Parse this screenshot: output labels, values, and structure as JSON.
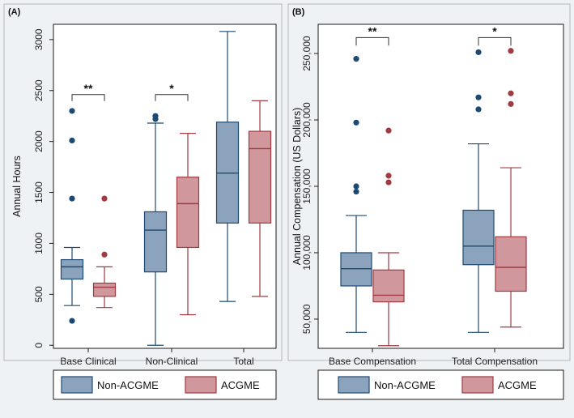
{
  "colors": {
    "background": "#eef2f5",
    "plot_bg": "#ffffff",
    "non_acgme_fill": "#8ba3bd",
    "non_acgme_line": "#1d4a72",
    "acgme_fill": "#d0979c",
    "acgme_line": "#a13a42"
  },
  "chart_data": [
    {
      "type": "boxplot",
      "panel_label": "(A)",
      "ylabel": "Annual Hours",
      "ylim": [
        -30,
        3150
      ],
      "yticks": [
        0,
        500,
        1000,
        1500,
        2000,
        2500,
        3000
      ],
      "ytick_labels": [
        "0",
        "500",
        "1000",
        "1500",
        "2000",
        "2500",
        "3000"
      ],
      "categories": [
        "Base Clinical",
        "Non-Clinical",
        "Total"
      ],
      "legend": [
        "Non-ACGME",
        "ACGME"
      ],
      "series": [
        {
          "name": "Non-ACGME",
          "boxes": [
            {
              "whisker_low": 390,
              "q1": 650,
              "median": 770,
              "q3": 840,
              "whisker_high": 960,
              "outliers": [
                240,
                1440,
                2010,
                2300
              ]
            },
            {
              "whisker_low": 0,
              "q1": 720,
              "median": 1130,
              "q3": 1310,
              "whisker_high": 2180,
              "outliers": [
                2220,
                2250
              ]
            },
            {
              "whisker_low": 430,
              "q1": 1200,
              "median": 1690,
              "q3": 2190,
              "whisker_high": 3080,
              "outliers": []
            }
          ]
        },
        {
          "name": "ACGME",
          "boxes": [
            {
              "whisker_low": 370,
              "q1": 480,
              "median": 570,
              "q3": 610,
              "whisker_high": 770,
              "outliers": [
                890,
                1440
              ]
            },
            {
              "whisker_low": 300,
              "q1": 960,
              "median": 1390,
              "q3": 1650,
              "whisker_high": 2080,
              "outliers": []
            },
            {
              "whisker_low": 480,
              "q1": 1200,
              "median": 1930,
              "q3": 2100,
              "whisker_high": 2400,
              "outliers": []
            }
          ]
        }
      ],
      "significance": [
        {
          "category_index": 0,
          "label": "**",
          "y": 2460
        },
        {
          "category_index": 1,
          "label": "*",
          "y": 2460
        }
      ]
    },
    {
      "type": "boxplot",
      "panel_label": "(B)",
      "ylabel": "Annual Compensation (US Dollars)",
      "ylim": [
        28000,
        272000
      ],
      "yticks": [
        50000,
        100000,
        150000,
        200000,
        250000
      ],
      "ytick_labels": [
        "50,000",
        "100,000",
        "150,000",
        "200,000",
        "250,000"
      ],
      "categories": [
        "Base Compensation",
        "Total Compensation"
      ],
      "legend": [
        "Non-ACGME",
        "ACGME"
      ],
      "series": [
        {
          "name": "Non-ACGME",
          "boxes": [
            {
              "whisker_low": 40000,
              "q1": 75000,
              "median": 88000,
              "q3": 100000,
              "whisker_high": 128000,
              "outliers": [
                146000,
                150000,
                198000,
                246000
              ]
            },
            {
              "whisker_low": 40000,
              "q1": 91000,
              "median": 105000,
              "q3": 132000,
              "whisker_high": 182000,
              "outliers": [
                208000,
                217000,
                251000
              ]
            }
          ]
        },
        {
          "name": "ACGME",
          "boxes": [
            {
              "whisker_low": 30000,
              "q1": 63000,
              "median": 68000,
              "q3": 87000,
              "whisker_high": 100000,
              "outliers": [
                153000,
                158000,
                192000
              ]
            },
            {
              "whisker_low": 44000,
              "q1": 71000,
              "median": 89000,
              "q3": 112000,
              "whisker_high": 164000,
              "outliers": [
                212000,
                220000,
                252000
              ]
            }
          ]
        }
      ],
      "significance": [
        {
          "category_index": 0,
          "label": "**",
          "y": 262000
        },
        {
          "category_index": 1,
          "label": "*",
          "y": 262000
        }
      ]
    }
  ]
}
